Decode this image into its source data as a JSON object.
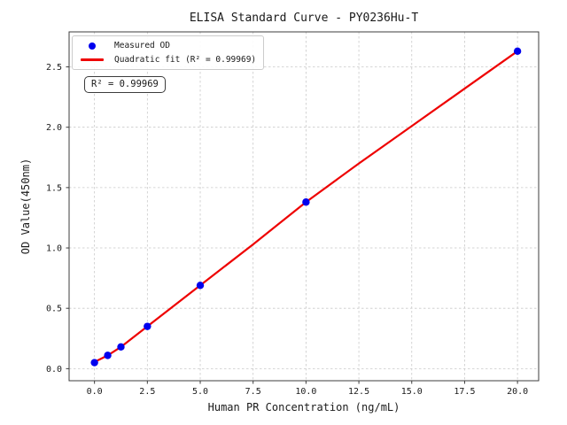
{
  "chart_data": {
    "type": "scatter",
    "title": "ELISA Standard Curve - PY0236Hu-T",
    "xlabel": "Human PR Concentration (ng/mL)",
    "ylabel": "OD Value(450nm)",
    "xlim": [
      -1.2,
      21.0
    ],
    "ylim": [
      -0.1,
      2.79
    ],
    "x_ticks": [
      0.0,
      2.5,
      5.0,
      7.5,
      10.0,
      12.5,
      15.0,
      17.5,
      20.0
    ],
    "x_tick_labels": [
      "0.0",
      "2.5",
      "5.0",
      "7.5",
      "10.0",
      "12.5",
      "15.0",
      "17.5",
      "20.0"
    ],
    "y_ticks": [
      0.0,
      0.5,
      1.0,
      1.5,
      2.0,
      2.5
    ],
    "y_tick_labels": [
      "0.0",
      "0.5",
      "1.0",
      "1.5",
      "2.0",
      "2.5"
    ],
    "grid": true,
    "grid_style": "dashed",
    "legend_position": "upper left",
    "annotation": "R² = 0.99969",
    "series": [
      {
        "name": "Measured OD",
        "type": "scatter",
        "color": "#0000ee",
        "x": [
          0,
          0.625,
          1.25,
          2.5,
          5,
          10,
          20
        ],
        "y": [
          0.05,
          0.11,
          0.18,
          0.35,
          0.69,
          1.38,
          2.63
        ]
      },
      {
        "name": "Quadratic fit (R² = 0.99969)",
        "type": "line",
        "color": "#ee0000",
        "x": [
          0,
          0.625,
          1.25,
          2.5,
          5,
          7.5,
          10,
          12.5,
          15,
          17.5,
          20
        ],
        "y": [
          0.055,
          0.11,
          0.18,
          0.35,
          0.69,
          1.03,
          1.38,
          1.7,
          2.01,
          2.32,
          2.63
        ]
      }
    ]
  },
  "legend": {
    "items": [
      {
        "label": "Measured OD",
        "marker": "dot",
        "color": "#0000ee"
      },
      {
        "label": "Quadratic fit (R² = 0.99969)",
        "marker": "line",
        "color": "#ee0000"
      }
    ]
  },
  "colors": {
    "background": "#ffffff",
    "grid": "#c9c9c9",
    "spine": "#3c3c3c",
    "tick_label": "#1a1a1a",
    "scatter": "#0000ee",
    "fit_line": "#ee0000"
  }
}
